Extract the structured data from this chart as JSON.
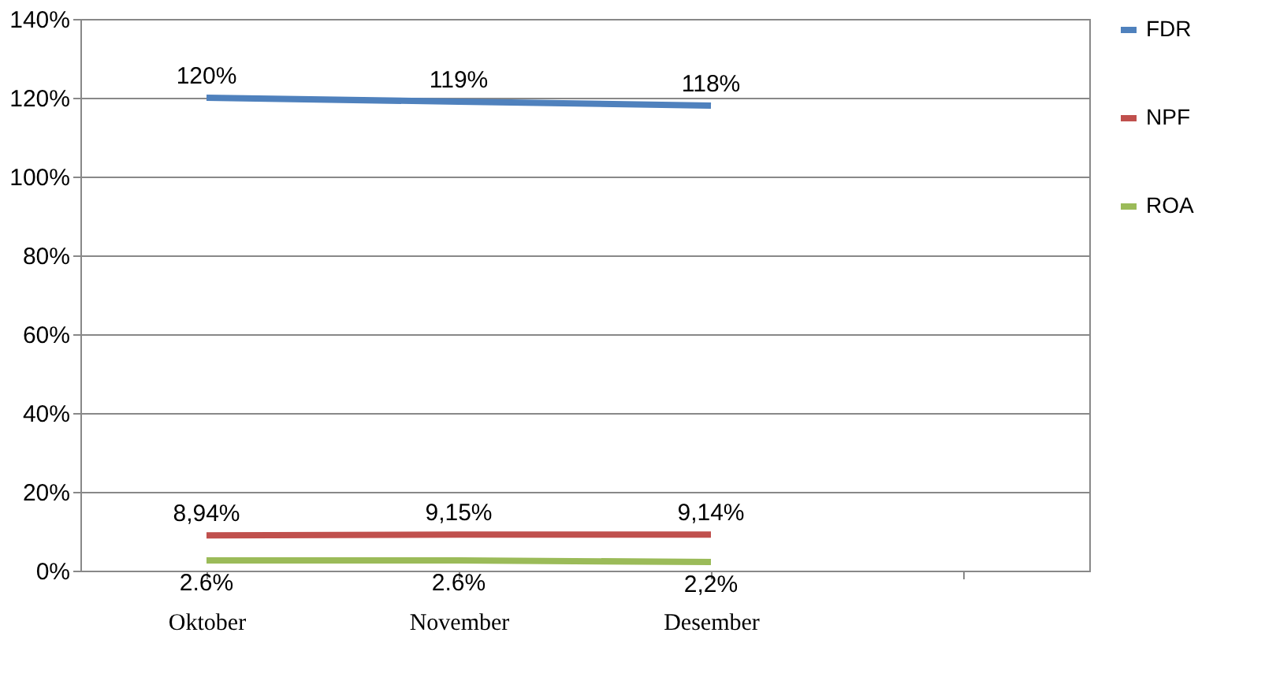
{
  "chart_data": {
    "type": "line",
    "categories": [
      "Oktober",
      "November",
      "Desember",
      null
    ],
    "series": [
      {
        "name": "FDR",
        "color": "#4f81bd",
        "values": [
          120,
          119,
          118,
          null
        ],
        "value_labels": [
          "120%",
          "119%",
          "118%",
          null
        ]
      },
      {
        "name": "NPF",
        "color": "#c0504d",
        "values": [
          8.94,
          9.15,
          9.14,
          null
        ],
        "value_labels": [
          "8,94%",
          "9,15%",
          "9,14%",
          null
        ]
      },
      {
        "name": "ROA",
        "color": "#9bbb59",
        "values": [
          2.6,
          2.6,
          2.2,
          null
        ],
        "value_labels": [
          "2.6%",
          "2.6%",
          "2,2%",
          null
        ]
      }
    ],
    "ylim": [
      0,
      140
    ],
    "yticks": [
      {
        "value": 0,
        "label": "0%"
      },
      {
        "value": 20,
        "label": "20%"
      },
      {
        "value": 40,
        "label": "40%"
      },
      {
        "value": 60,
        "label": "60%"
      },
      {
        "value": 80,
        "label": "80%"
      },
      {
        "value": 100,
        "label": "100%"
      },
      {
        "value": 120,
        "label": "120%"
      },
      {
        "value": 140,
        "label": "140%"
      }
    ],
    "grid": "y",
    "legend": "right",
    "marker": "none",
    "line_style": "solid"
  }
}
